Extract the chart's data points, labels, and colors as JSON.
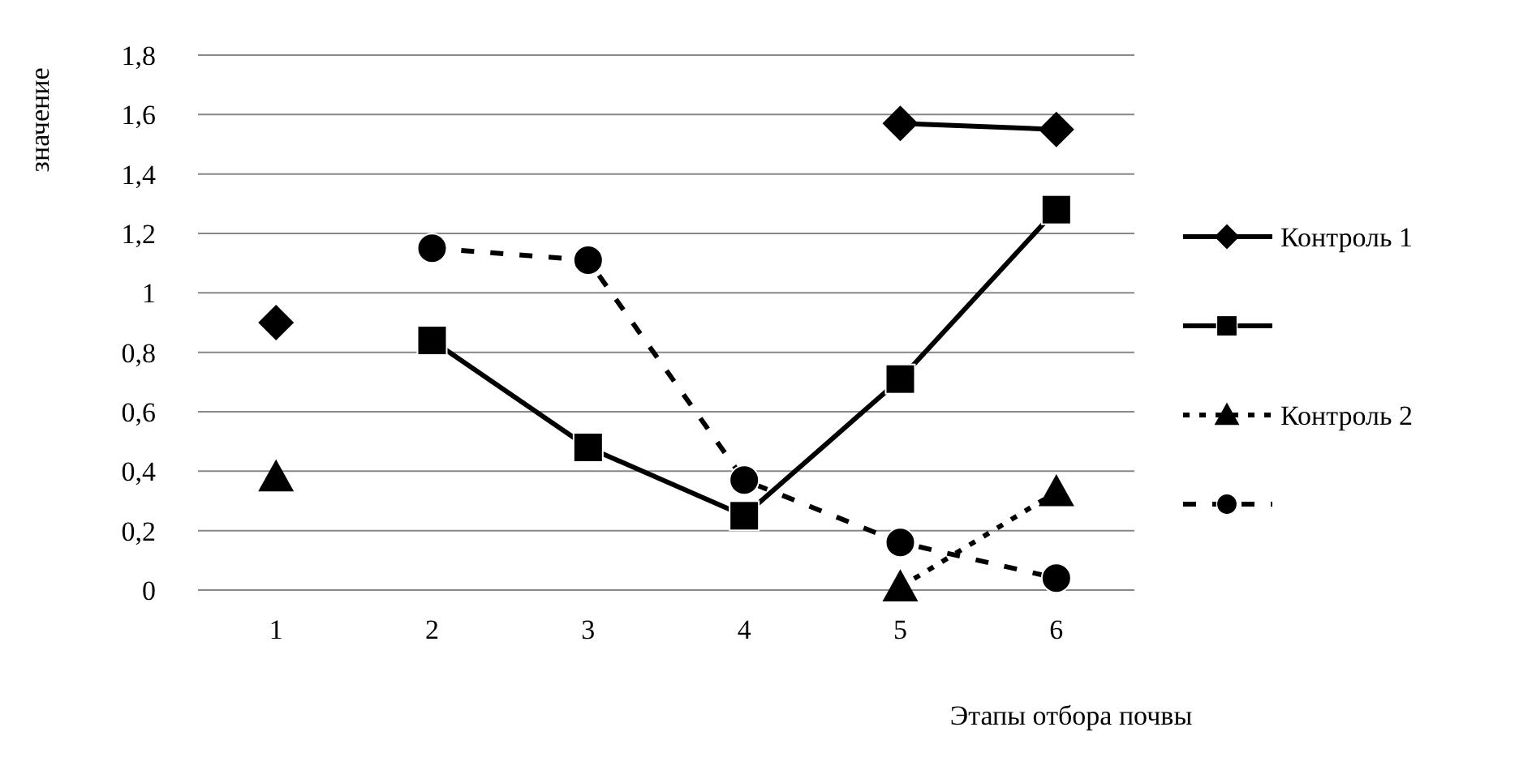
{
  "chart_data": {
    "type": "line",
    "xlabel": "Этапы отбора почвы",
    "ylabel": "значение",
    "categories": [
      "1",
      "2",
      "3",
      "4",
      "5",
      "6"
    ],
    "ylim": [
      0,
      1.8
    ],
    "yticks": [
      0,
      {
        "value": 0.2,
        "label": "0,2"
      },
      {
        "value": 0.4,
        "label": "0,4"
      },
      {
        "value": 0.6,
        "label": "0,6"
      },
      {
        "value": 0.8,
        "label": "0,8"
      },
      1,
      {
        "value": 1.2,
        "label": "1,2"
      },
      {
        "value": 1.4,
        "label": "1,4"
      },
      {
        "value": 1.6,
        "label": "1,6"
      },
      {
        "value": 1.8,
        "label": "1,8"
      }
    ],
    "grid": "y",
    "legend": "right",
    "series": [
      {
        "name": "Контроль 1",
        "color": "#000000",
        "marker": "diamond",
        "line_style": "solid",
        "values": [
          0.9,
          null,
          null,
          null,
          1.57,
          1.55
        ]
      },
      {
        "color": "#000000",
        "marker": "square",
        "line_style": "solid",
        "values": [
          null,
          0.84,
          0.48,
          0.25,
          0.71,
          1.28
        ]
      },
      {
        "name": "Контроль 2",
        "color": "#000000",
        "marker": "triangle",
        "line_style": "dotted",
        "values": [
          0.38,
          null,
          null,
          null,
          0.01,
          0.33
        ]
      },
      {
        "color": "#000000",
        "marker": "circle",
        "line_style": "dashed",
        "values": [
          null,
          1.15,
          1.11,
          0.37,
          0.16,
          0.04
        ]
      }
    ]
  }
}
